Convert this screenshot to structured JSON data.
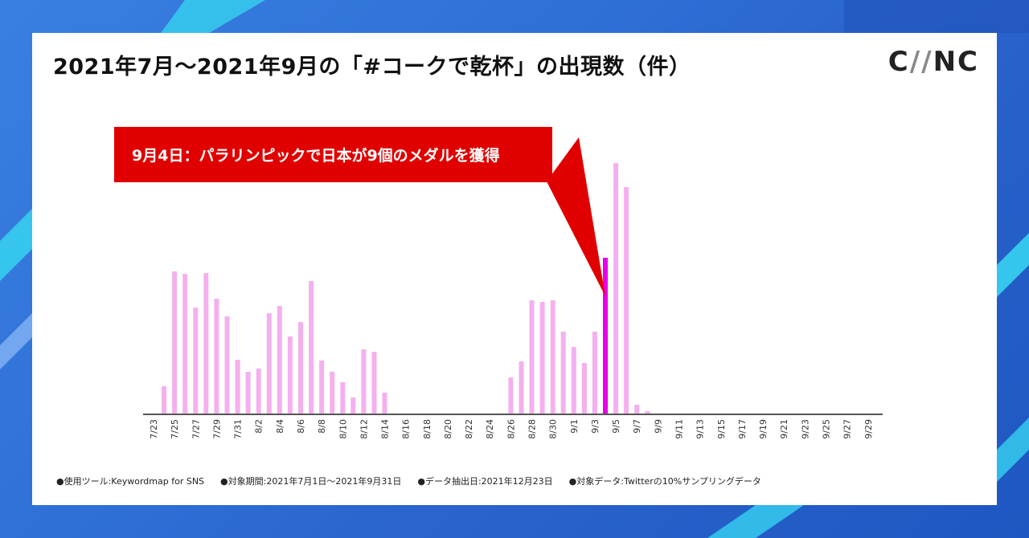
{
  "title": "2021年7月〜2021年9月の「#コークで乾杯」の出現数（件）",
  "logo": {
    "left": "C",
    "slash": "//",
    "right": "NC"
  },
  "callout": "9月4日：パラリンピックで日本が9個のメダルを獲得",
  "footnote": {
    "tool": "●使用ツール:Keywordmap for SNS",
    "period": "●対象期間:2021年7月1日〜2021年9月31日",
    "extract": "●データ抽出日:2021年12月23日",
    "target": "●対象データ:Twitterの10%サンプリングデータ"
  },
  "colors": {
    "bar": "#f4b0ee",
    "highlight": "#e800e8",
    "axis": "#555555",
    "callout": "#e00000"
  },
  "chart_data": {
    "type": "bar",
    "title": "2021年7月〜2021年9月の「#コークで乾杯」の出現数（件）",
    "xlabel": "",
    "ylabel": "",
    "ylim": [
      0,
      320
    ],
    "highlight_category": "9/4",
    "tick_labels": [
      "7/23",
      "7/25",
      "7/27",
      "7/29",
      "7/31",
      "8/2",
      "8/4",
      "8/6",
      "8/8",
      "8/10",
      "8/12",
      "8/14",
      "8/16",
      "8/18",
      "8/20",
      "8/22",
      "8/24",
      "8/26",
      "8/28",
      "8/30",
      "9/1",
      "9/3",
      "9/5",
      "9/7",
      "9/9",
      "9/11",
      "9/13",
      "9/15",
      "9/17",
      "9/19",
      "9/21",
      "9/23",
      "9/25",
      "9/27",
      "9/29"
    ],
    "categories": [
      "7/23",
      "7/24",
      "7/25",
      "7/26",
      "7/27",
      "7/28",
      "7/29",
      "7/30",
      "7/31",
      "8/1",
      "8/2",
      "8/3",
      "8/4",
      "8/5",
      "8/6",
      "8/7",
      "8/8",
      "8/9",
      "8/10",
      "8/11",
      "8/12",
      "8/13",
      "8/14",
      "8/15",
      "8/16",
      "8/17",
      "8/18",
      "8/19",
      "8/20",
      "8/21",
      "8/22",
      "8/23",
      "8/24",
      "8/25",
      "8/26",
      "8/27",
      "8/28",
      "8/29",
      "8/30",
      "8/31",
      "9/1",
      "9/2",
      "9/3",
      "9/4",
      "9/5",
      "9/6",
      "9/7",
      "9/8",
      "9/9",
      "9/10",
      "9/11",
      "9/12",
      "9/13",
      "9/14",
      "9/15",
      "9/16",
      "9/17",
      "9/18",
      "9/19",
      "9/20",
      "9/21",
      "9/22",
      "9/23",
      "9/24",
      "9/25",
      "9/26",
      "9/27",
      "9/28",
      "9/29",
      "9/30"
    ],
    "values": [
      0,
      35,
      178,
      175,
      133,
      176,
      144,
      122,
      68,
      53,
      57,
      126,
      135,
      97,
      115,
      166,
      67,
      53,
      40,
      21,
      81,
      78,
      27,
      0,
      0,
      0,
      0,
      0,
      0,
      0,
      0,
      0,
      0,
      0,
      46,
      66,
      142,
      140,
      142,
      103,
      84,
      64,
      103,
      195,
      313,
      283,
      12,
      4,
      0,
      0,
      0,
      0,
      0,
      0,
      0,
      0,
      0,
      0,
      0,
      0,
      0,
      0,
      0,
      0,
      0,
      0,
      0,
      0,
      0,
      0
    ]
  }
}
